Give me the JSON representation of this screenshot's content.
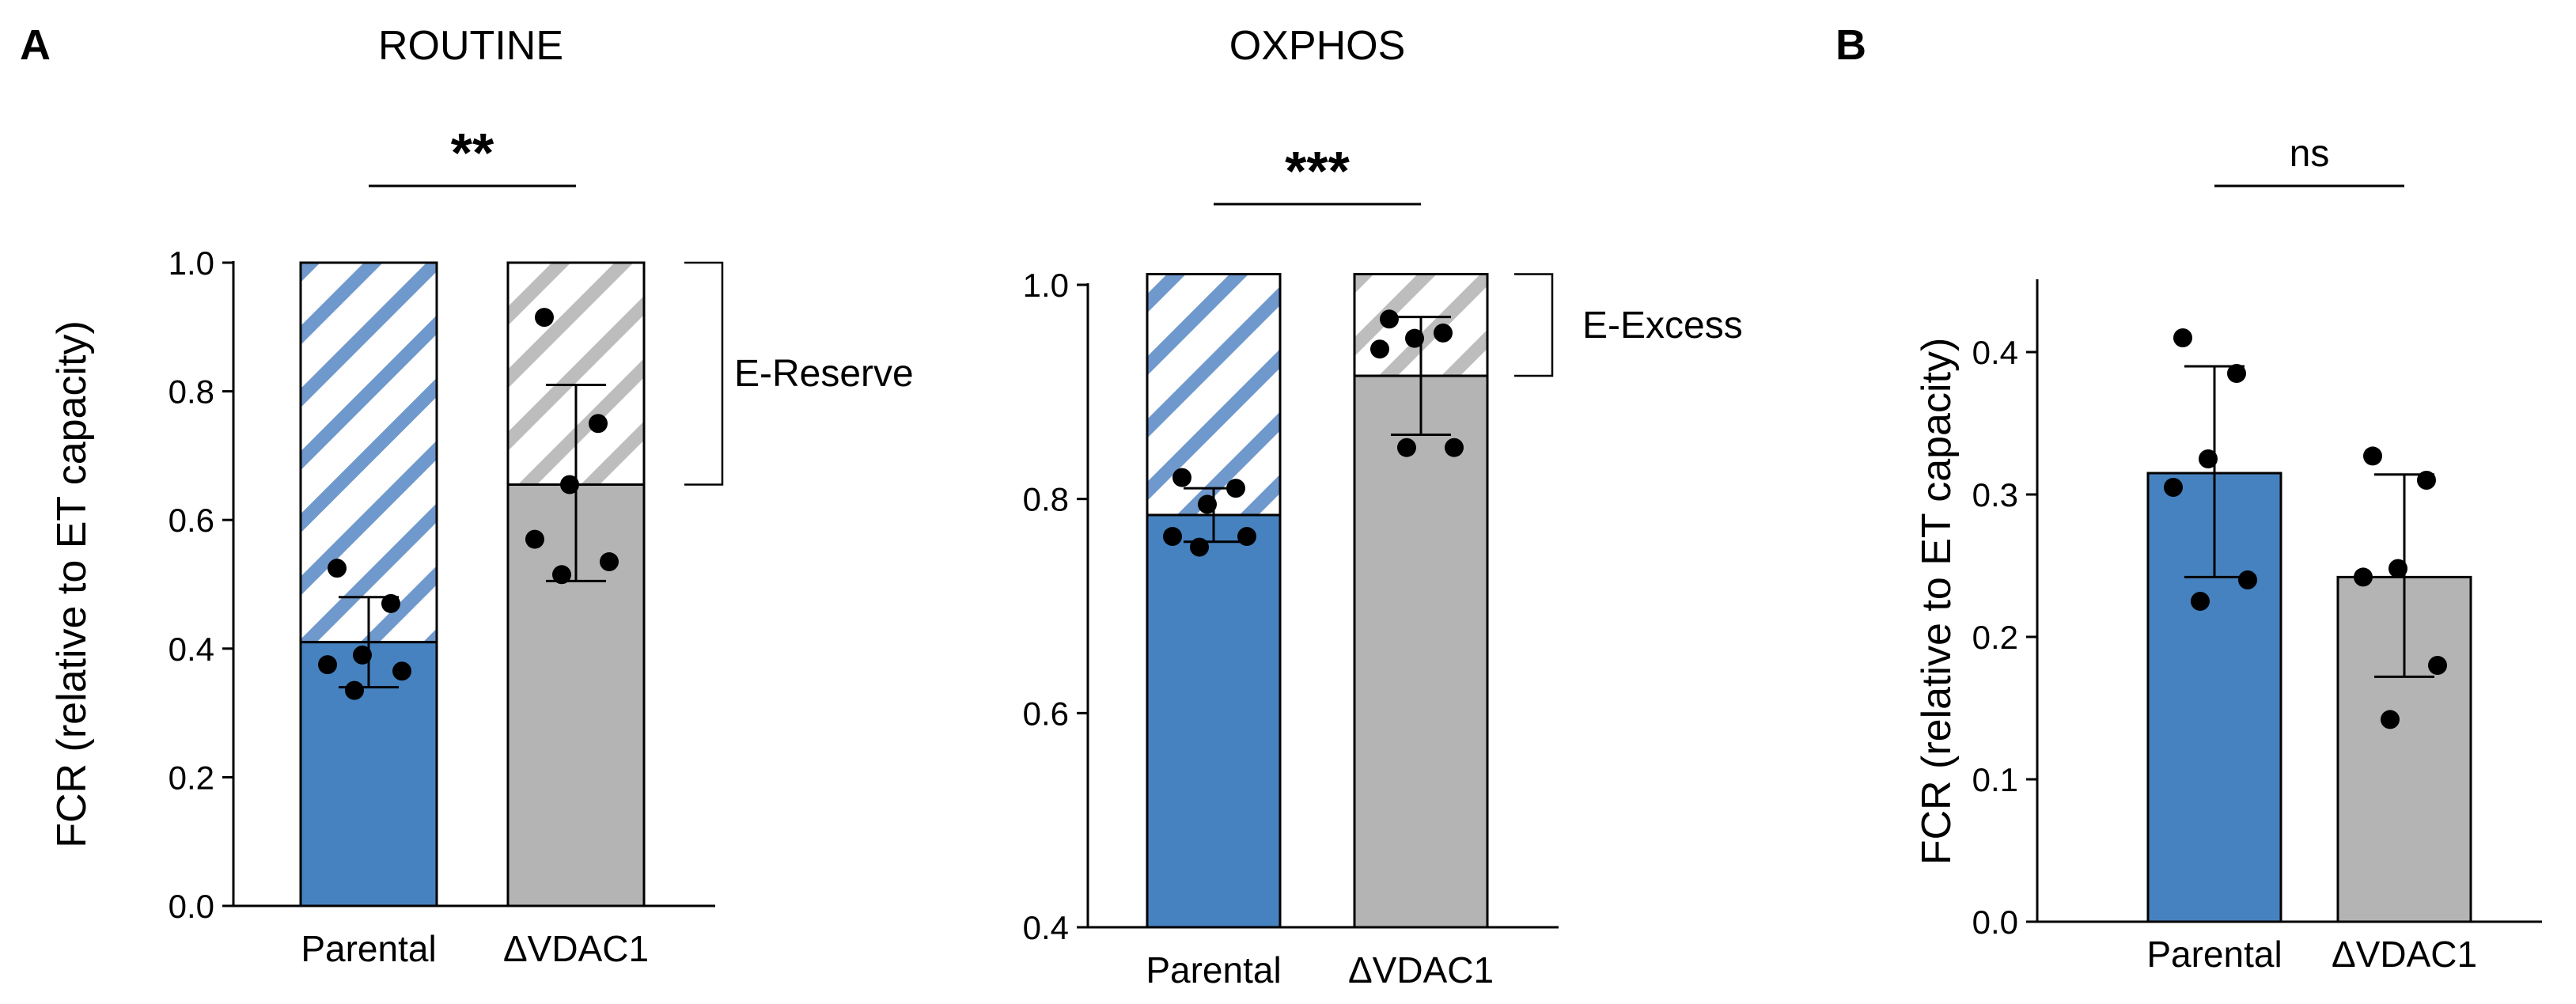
{
  "panels": [
    {
      "letter": "A"
    },
    {
      "letter": "B"
    }
  ],
  "colors": {
    "parental": "#4682bf",
    "vdac1": "#b4b4b4",
    "parental_hatch": "#6f98cc",
    "vdac1_hatch": "#bdbdbd"
  },
  "chart_data": [
    {
      "type": "bar",
      "title": "ROUTINE",
      "ylabel": "FCR (relative to ET capacity)",
      "ylim": [
        0.0,
        1.0
      ],
      "yticks": [
        "0.0",
        "0.2",
        "0.4",
        "0.6",
        "0.8",
        "1.0"
      ],
      "categories": [
        "Parental",
        "ΔVDAC1"
      ],
      "values": [
        0.41,
        0.655
      ],
      "stacked_hatched_top": [
        1.0,
        1.0
      ],
      "error_low": [
        0.34,
        0.505
      ],
      "error_high": [
        0.48,
        0.81
      ],
      "points": [
        [
          0.525,
          0.47,
          0.39,
          0.375,
          0.365,
          0.335
        ],
        [
          0.915,
          0.75,
          0.655,
          0.57,
          0.535,
          0.515
        ]
      ],
      "significance": "**",
      "bracket_label": "E-Reserve",
      "bracket_range": [
        0.655,
        1.0
      ]
    },
    {
      "type": "bar",
      "title": "OXPHOS",
      "ylabel": "",
      "ylim": [
        0.4,
        1.0
      ],
      "yticks": [
        "0.4",
        "0.6",
        "0.8",
        "1.0"
      ],
      "categories": [
        "Parental",
        "ΔVDAC1"
      ],
      "values": [
        0.785,
        0.915
      ],
      "stacked_hatched_top": [
        1.01,
        1.01
      ],
      "error_low": [
        0.76,
        0.86
      ],
      "error_high": [
        0.81,
        0.97
      ],
      "points": [
        [
          0.82,
          0.81,
          0.795,
          0.765,
          0.765,
          0.755
        ],
        [
          0.968,
          0.955,
          0.95,
          0.94,
          0.848,
          0.848
        ]
      ],
      "significance": "***",
      "bracket_label": "E-Excess",
      "bracket_range": [
        0.915,
        1.01
      ]
    },
    {
      "type": "bar",
      "title": "",
      "ylabel": "FCR (relative to ET capacity)",
      "ylim": [
        0.0,
        0.45
      ],
      "yticks": [
        "0.0",
        "0.1",
        "0.2",
        "0.3",
        "0.4"
      ],
      "categories": [
        "Parental",
        "ΔVDAC1"
      ],
      "values": [
        0.315,
        0.242
      ],
      "error_low": [
        0.242,
        0.172
      ],
      "error_high": [
        0.39,
        0.314
      ],
      "points": [
        [
          0.41,
          0.385,
          0.325,
          0.305,
          0.24,
          0.225
        ],
        [
          0.327,
          0.31,
          0.248,
          0.242,
          0.18,
          0.142
        ]
      ],
      "significance": "ns"
    }
  ]
}
